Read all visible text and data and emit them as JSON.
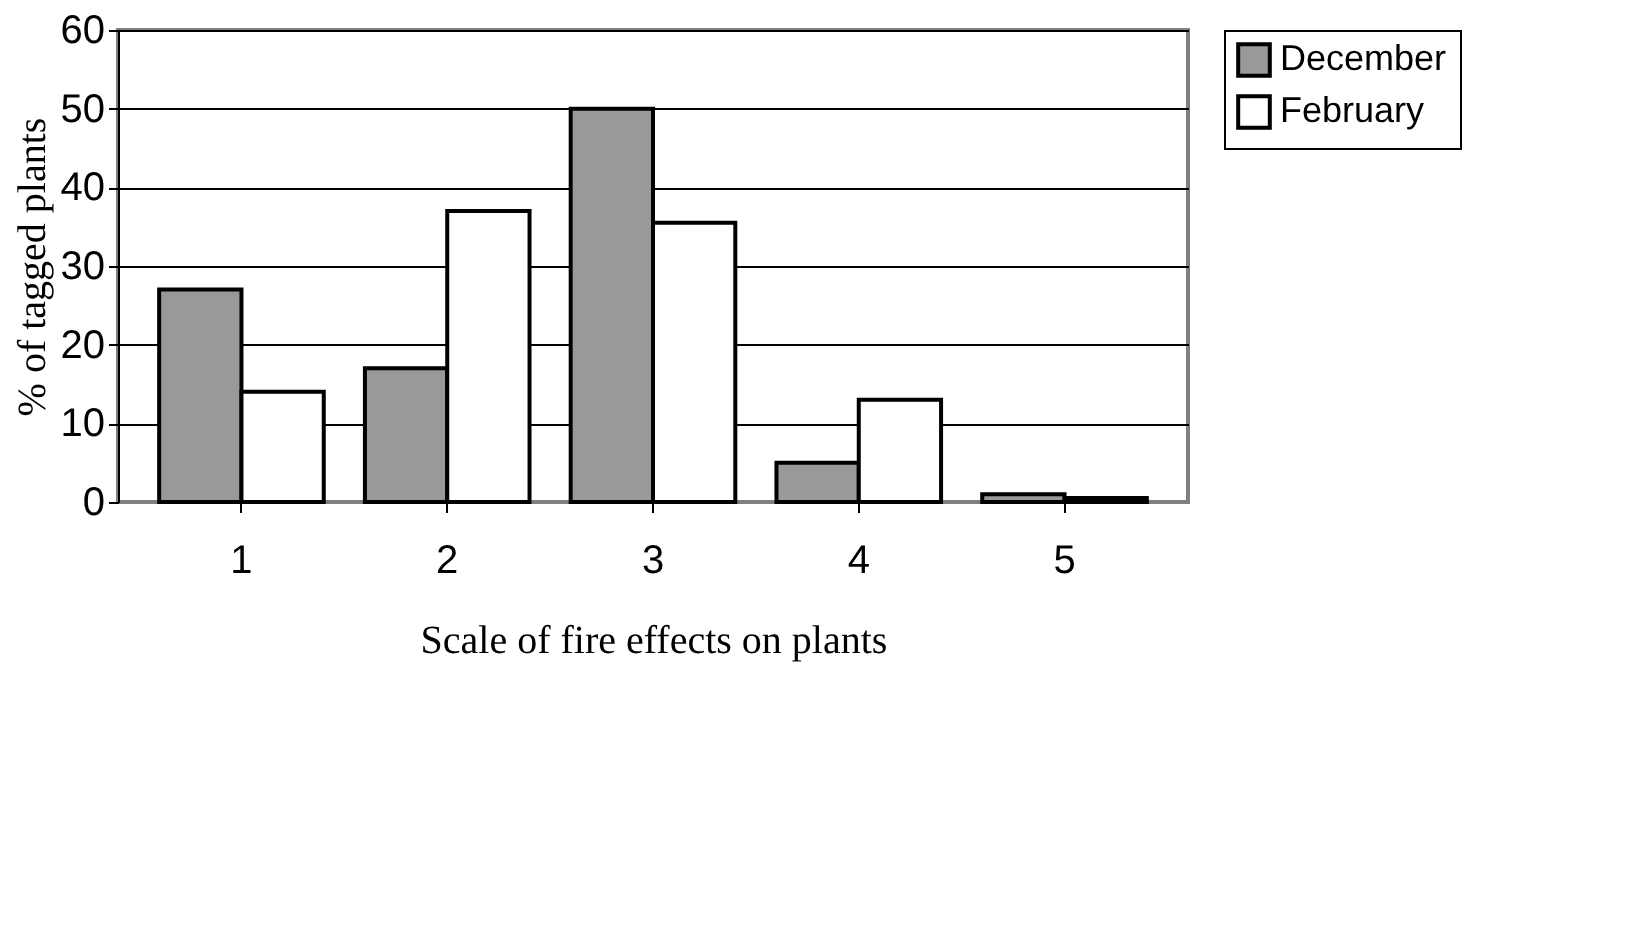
{
  "chart_data": {
    "type": "bar",
    "xlabel": "Scale of fire effects on plants",
    "ylabel": "% of tagged plants",
    "categories": [
      "1",
      "2",
      "3",
      "4",
      "5"
    ],
    "series": [
      {
        "name": "December",
        "color": "#999999",
        "values": [
          27,
          17,
          50,
          5,
          1
        ]
      },
      {
        "name": "February",
        "color": "#ffffff",
        "values": [
          14,
          37,
          35.5,
          13,
          0.5
        ]
      }
    ],
    "ylim": [
      0,
      60
    ],
    "yticks": [
      0,
      10,
      20,
      30,
      40,
      50,
      60
    ],
    "grid": "y",
    "legend": "right"
  }
}
